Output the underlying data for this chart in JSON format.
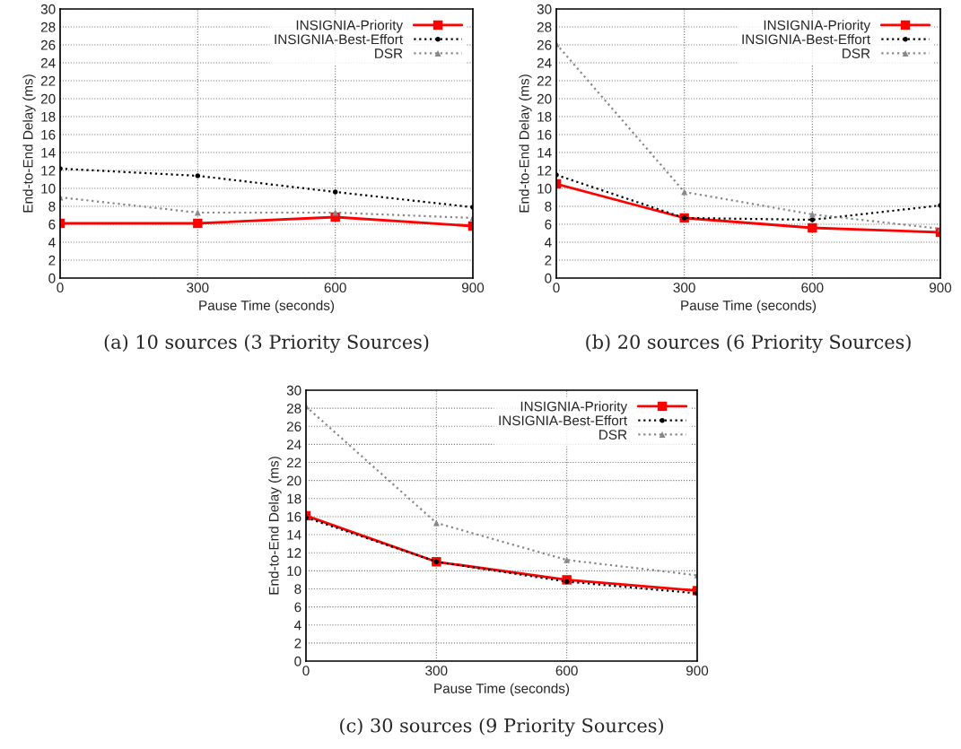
{
  "chart_data": [
    {
      "type": "line",
      "title": "(a) 10 sources (3 Priority Sources)",
      "xlabel": "Pause Time (seconds)",
      "ylabel": "End-to-End Delay (ms)",
      "x": [
        0,
        300,
        600,
        900
      ],
      "xlim": [
        0,
        900
      ],
      "xticks": [
        0,
        300,
        600,
        900
      ],
      "ylim": [
        0,
        30
      ],
      "yticks": [
        0,
        2,
        4,
        6,
        8,
        10,
        12,
        14,
        16,
        18,
        20,
        22,
        24,
        26,
        28,
        30
      ],
      "grid": true,
      "legend": "top right",
      "series": [
        {
          "name": "INSIGNIA-Priority",
          "color": "#ff0000",
          "marker": "square",
          "line_style": "solid",
          "values": [
            6.1,
            6.1,
            6.8,
            5.8
          ]
        },
        {
          "name": "INSIGNIA-Best-Effort",
          "color": "#000000",
          "marker": "circle",
          "line_style": "dotted",
          "values": [
            12.2,
            11.4,
            9.6,
            7.9
          ]
        },
        {
          "name": "DSR",
          "color": "#888888",
          "marker": "triangle",
          "line_style": "dotted",
          "values": [
            9.0,
            7.3,
            7.3,
            6.7
          ]
        }
      ]
    },
    {
      "type": "line",
      "title": "(b) 20 sources (6 Priority Sources)",
      "xlabel": "Pause Time (seconds)",
      "ylabel": "End-to-End Delay (ms)",
      "x": [
        0,
        300,
        600,
        900
      ],
      "xlim": [
        0,
        900
      ],
      "xticks": [
        0,
        300,
        600,
        900
      ],
      "ylim": [
        0,
        30
      ],
      "yticks": [
        0,
        2,
        4,
        6,
        8,
        10,
        12,
        14,
        16,
        18,
        20,
        22,
        24,
        26,
        28,
        30
      ],
      "grid": true,
      "legend": "top right",
      "series": [
        {
          "name": "INSIGNIA-Priority",
          "color": "#ff0000",
          "marker": "square",
          "line_style": "solid",
          "values": [
            10.5,
            6.7,
            5.6,
            5.1
          ]
        },
        {
          "name": "INSIGNIA-Best-Effort",
          "color": "#000000",
          "marker": "circle",
          "line_style": "dotted",
          "values": [
            11.5,
            6.7,
            6.5,
            8.1
          ]
        },
        {
          "name": "DSR",
          "color": "#888888",
          "marker": "triangle",
          "line_style": "dotted",
          "values": [
            26.1,
            9.6,
            7.1,
            5.5
          ]
        }
      ]
    },
    {
      "type": "line",
      "title": "(c) 30 sources (9 Priority Sources)",
      "xlabel": "Pause Time (seconds)",
      "ylabel": "End-to-End Delay (ms)",
      "x": [
        0,
        300,
        600,
        900
      ],
      "xlim": [
        0,
        900
      ],
      "xticks": [
        0,
        300,
        600,
        900
      ],
      "ylim": [
        0,
        30
      ],
      "yticks": [
        0,
        2,
        4,
        6,
        8,
        10,
        12,
        14,
        16,
        18,
        20,
        22,
        24,
        26,
        28,
        30
      ],
      "grid": true,
      "legend": "top right",
      "series": [
        {
          "name": "INSIGNIA-Priority",
          "color": "#ff0000",
          "marker": "square",
          "line_style": "solid",
          "values": [
            16.1,
            11.0,
            9.0,
            7.8
          ]
        },
        {
          "name": "INSIGNIA-Best-Effort",
          "color": "#000000",
          "marker": "circle",
          "line_style": "dotted",
          "values": [
            15.9,
            11.0,
            8.8,
            7.5
          ]
        },
        {
          "name": "DSR",
          "color": "#888888",
          "marker": "triangle",
          "line_style": "dotted",
          "values": [
            28.2,
            15.3,
            11.2,
            9.5
          ]
        }
      ]
    }
  ]
}
